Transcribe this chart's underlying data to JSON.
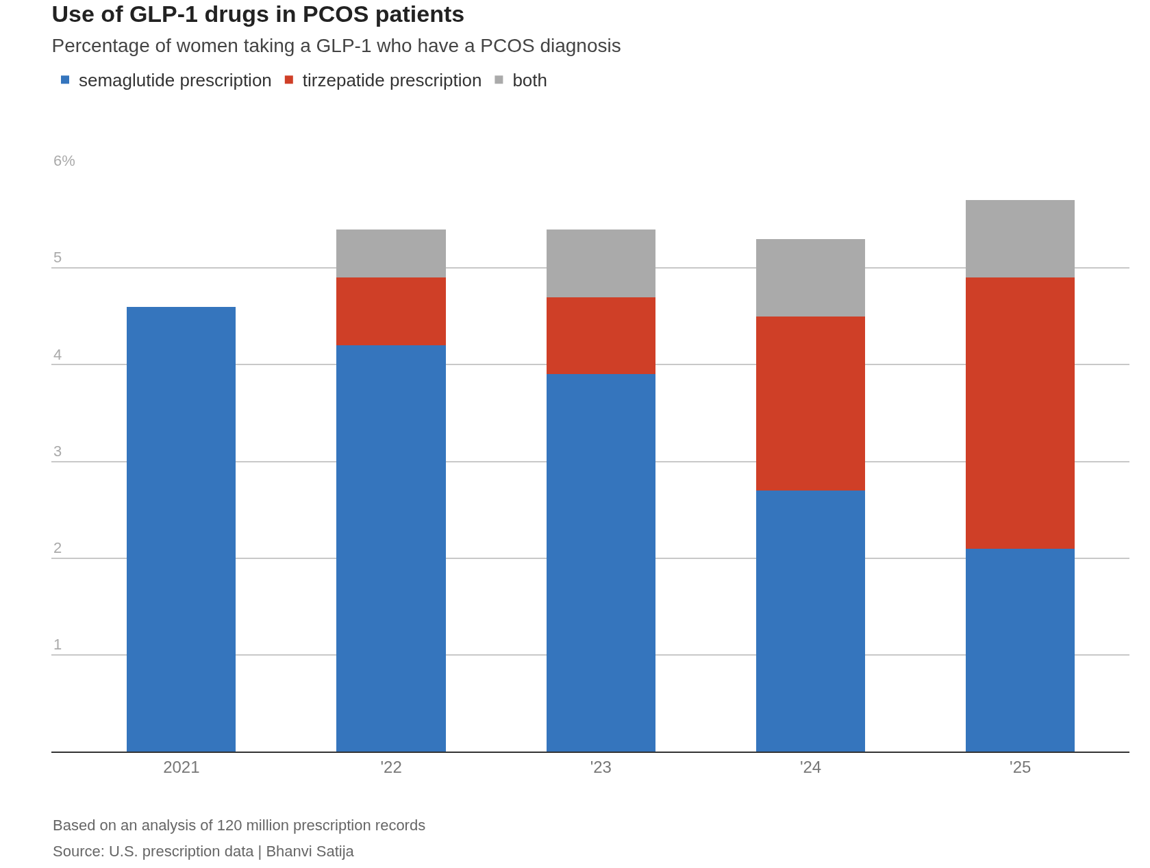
{
  "chart_data": {
    "type": "bar",
    "stacked": true,
    "title": "Use of GLP-1 drugs in PCOS patients",
    "subtitle": "Percentage of women taking a GLP-1 who have a PCOS diagnosis",
    "categories": [
      "2021",
      "'22",
      "'23",
      "'24",
      "'25"
    ],
    "series": [
      {
        "name": "semaglutide prescription",
        "color": "#3575bd",
        "values": [
          4.6,
          4.2,
          3.9,
          2.7,
          2.1
        ]
      },
      {
        "name": "tirzepatide prescription",
        "color": "#cf3f27",
        "values": [
          null,
          0.7,
          0.8,
          1.8,
          2.8
        ]
      },
      {
        "name": "both",
        "color": "#aaaaaa",
        "values": [
          null,
          0.5,
          0.7,
          0.8,
          0.8
        ]
      }
    ],
    "ylim": [
      0,
      6
    ],
    "yticks": [
      {
        "value": 0,
        "label": null
      },
      1,
      2,
      3,
      4,
      5,
      {
        "value": 6,
        "label": "6%"
      }
    ],
    "grid": "y",
    "legend": "top left",
    "annotations": [
      "Based on an analysis of 120 million prescription records",
      "Source: U.S. prescription data | Bhanvi Satija"
    ]
  }
}
